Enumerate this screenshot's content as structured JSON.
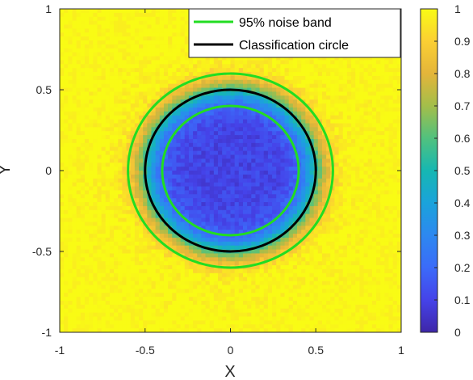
{
  "chart_data": {
    "type": "heatmap",
    "title": "",
    "xlabel": "X",
    "ylabel": "Y",
    "xlim": [
      -1,
      1
    ],
    "ylim": [
      -1,
      1
    ],
    "x_ticks": [
      "-1",
      "-0.5",
      "0",
      "0.5",
      "1"
    ],
    "y_ticks": [
      "1",
      "0.5",
      "0",
      "-0.5",
      "-1"
    ],
    "colorbar": {
      "range": [
        0,
        1
      ],
      "ticks": [
        "1",
        "0.9",
        "0.8",
        "0.7",
        "0.6",
        "0.5",
        "0.4",
        "0.3",
        "0.2",
        "0.1",
        "0"
      ],
      "colormap": "parula"
    },
    "heatmap_model": {
      "description_values": {
        "center_value": 0.1,
        "edge_value": 1.0,
        "transition_radius": 0.5,
        "transition_width": 0.13
      }
    },
    "series": [
      {
        "name": "95% noise band",
        "kind": "circle",
        "center": [
          0,
          0
        ],
        "radii": [
          0.4,
          0.6
        ],
        "color": "#22dd22"
      },
      {
        "name": "Classification circle",
        "kind": "circle",
        "center": [
          0,
          0
        ],
        "radii": [
          0.5
        ],
        "color": "#000000"
      }
    ],
    "legend": {
      "placement": "top-right"
    },
    "grid": false
  }
}
